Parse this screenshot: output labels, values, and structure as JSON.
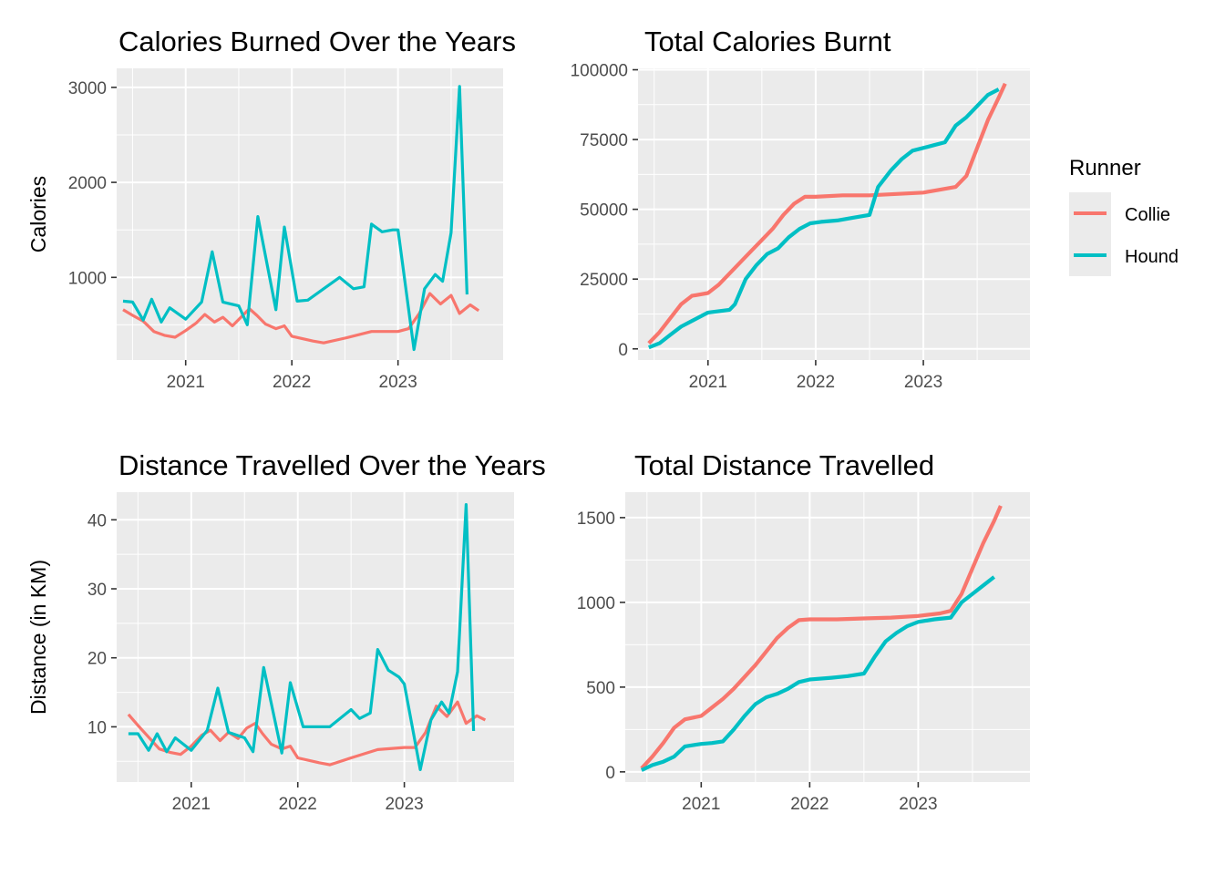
{
  "legend": {
    "title": "Runner",
    "placement": "right",
    "entries": [
      {
        "label": "Collie",
        "color": "#F8766D"
      },
      {
        "label": "Hound",
        "color": "#00BFC4"
      }
    ]
  },
  "chart_data": [
    {
      "type": "line",
      "title": "Calories Burned Over the Years",
      "xlabel": "",
      "ylabel": "Calories",
      "xlim": [
        2020.35,
        2023.99
      ],
      "ylim": [
        130,
        3200
      ],
      "xticks": [
        2021,
        2022,
        2023
      ],
      "yticks": [
        1000,
        2000,
        3000
      ],
      "grid": true,
      "series": [
        {
          "name": "Collie",
          "color": "#F8766D",
          "x": [
            2020.41,
            2020.5,
            2020.6,
            2020.7,
            2020.8,
            2020.9,
            2021.0,
            2021.1,
            2021.18,
            2021.27,
            2021.35,
            2021.44,
            2021.52,
            2021.6,
            2021.67,
            2021.75,
            2021.85,
            2021.93,
            2022.0,
            2022.2,
            2022.3,
            2022.5,
            2022.75,
            2023.0,
            2023.1,
            2023.2,
            2023.3,
            2023.4,
            2023.5,
            2023.58,
            2023.68,
            2023.76
          ],
          "values": [
            660,
            600,
            540,
            430,
            390,
            370,
            440,
            520,
            610,
            530,
            580,
            490,
            580,
            670,
            600,
            510,
            460,
            490,
            380,
            330,
            310,
            360,
            430,
            430,
            460,
            620,
            830,
            720,
            810,
            620,
            710,
            650
          ]
        },
        {
          "name": "Hound",
          "color": "#00BFC4",
          "x": [
            2020.41,
            2020.5,
            2020.6,
            2020.68,
            2020.77,
            2020.85,
            2021.0,
            2021.15,
            2021.25,
            2021.35,
            2021.5,
            2021.58,
            2021.68,
            2021.85,
            2021.93,
            2022.05,
            2022.15,
            2022.3,
            2022.45,
            2022.58,
            2022.68,
            2022.75,
            2022.85,
            2022.95,
            2023.0,
            2023.15,
            2023.25,
            2023.35,
            2023.42,
            2023.5,
            2023.58,
            2023.65
          ],
          "values": [
            750,
            740,
            550,
            770,
            530,
            680,
            560,
            740,
            1270,
            740,
            700,
            500,
            1640,
            660,
            1530,
            750,
            760,
            880,
            1000,
            880,
            900,
            1560,
            1480,
            1500,
            1500,
            240,
            880,
            1030,
            960,
            1470,
            3010,
            820
          ]
        }
      ]
    },
    {
      "type": "line",
      "title": "Total Calories Burnt",
      "xlabel": "",
      "ylabel": "",
      "xlim": [
        2020.35,
        2023.99
      ],
      "ylim": [
        -4000,
        100500
      ],
      "xticks": [
        2021,
        2022,
        2023
      ],
      "yticks": [
        0,
        25000,
        50000,
        75000,
        100000
      ],
      "grid": true,
      "series": [
        {
          "name": "Collie",
          "color": "#F8766D",
          "x": [
            2020.45,
            2020.55,
            2020.65,
            2020.75,
            2020.85,
            2021.0,
            2021.1,
            2021.2,
            2021.3,
            2021.4,
            2021.5,
            2021.6,
            2021.7,
            2021.8,
            2021.9,
            2022.0,
            2022.25,
            2022.5,
            2022.75,
            2023.0,
            2023.15,
            2023.3,
            2023.4,
            2023.5,
            2023.6,
            2023.7,
            2023.76
          ],
          "values": [
            2000,
            6000,
            11000,
            16000,
            19000,
            20000,
            23000,
            27000,
            31000,
            35000,
            39000,
            43000,
            48000,
            52000,
            54500,
            54500,
            55000,
            55000,
            55500,
            56000,
            57000,
            58000,
            62000,
            72000,
            82000,
            90000,
            95000
          ]
        },
        {
          "name": "Hound",
          "color": "#00BFC4",
          "x": [
            2020.45,
            2020.55,
            2020.65,
            2020.75,
            2020.85,
            2021.0,
            2021.1,
            2021.2,
            2021.25,
            2021.35,
            2021.45,
            2021.55,
            2021.65,
            2021.75,
            2021.85,
            2021.95,
            2022.05,
            2022.2,
            2022.35,
            2022.5,
            2022.58,
            2022.7,
            2022.8,
            2022.9,
            2023.0,
            2023.1,
            2023.2,
            2023.3,
            2023.4,
            2023.5,
            2023.6,
            2023.7
          ],
          "values": [
            500,
            2000,
            5000,
            8000,
            10000,
            13000,
            13500,
            14000,
            16000,
            25000,
            30000,
            34000,
            36000,
            40000,
            43000,
            45000,
            45500,
            46000,
            47000,
            48000,
            58000,
            64000,
            68000,
            71000,
            72000,
            73000,
            74000,
            80000,
            83000,
            87000,
            91000,
            93000
          ]
        }
      ]
    },
    {
      "type": "line",
      "title": "Distance Travelled Over the Years",
      "xlabel": "",
      "ylabel": "Distance (in KM)",
      "xlim": [
        2020.3,
        2024.03
      ],
      "ylim": [
        2,
        44
      ],
      "xticks": [
        2021,
        2022,
        2023
      ],
      "yticks": [
        10,
        20,
        30,
        40
      ],
      "grid": true,
      "series": [
        {
          "name": "Collie",
          "color": "#F8766D",
          "x": [
            2020.41,
            2020.5,
            2020.6,
            2020.7,
            2020.8,
            2020.9,
            2021.0,
            2021.1,
            2021.18,
            2021.27,
            2021.35,
            2021.44,
            2021.52,
            2021.6,
            2021.67,
            2021.75,
            2021.85,
            2021.93,
            2022.0,
            2022.2,
            2022.3,
            2022.5,
            2022.75,
            2023.0,
            2023.1,
            2023.2,
            2023.3,
            2023.4,
            2023.5,
            2023.58,
            2023.68,
            2023.76
          ],
          "values": [
            11.8,
            10.2,
            8.5,
            6.8,
            6.3,
            6.0,
            7.2,
            8.8,
            9.5,
            8.0,
            9.2,
            8.3,
            9.8,
            10.5,
            9.0,
            7.5,
            6.8,
            7.2,
            5.5,
            4.8,
            4.5,
            5.5,
            6.7,
            7.0,
            7.0,
            9.2,
            13.0,
            11.5,
            13.6,
            10.5,
            11.6,
            11.0
          ]
        },
        {
          "name": "Hound",
          "color": "#00BFC4",
          "x": [
            2020.41,
            2020.5,
            2020.6,
            2020.68,
            2020.77,
            2020.85,
            2021.0,
            2021.15,
            2021.25,
            2021.35,
            2021.5,
            2021.58,
            2021.68,
            2021.85,
            2021.93,
            2022.05,
            2022.15,
            2022.3,
            2022.5,
            2022.58,
            2022.68,
            2022.75,
            2022.85,
            2022.95,
            2023.0,
            2023.15,
            2023.25,
            2023.35,
            2023.42,
            2023.5,
            2023.58,
            2023.65
          ],
          "values": [
            9.0,
            9.0,
            6.6,
            9.0,
            6.4,
            8.4,
            6.6,
            9.5,
            15.6,
            9.2,
            8.4,
            6.4,
            18.6,
            6.2,
            16.4,
            10.0,
            10.0,
            10.0,
            12.5,
            11.2,
            12.0,
            21.2,
            18.2,
            17.2,
            16.2,
            3.8,
            11.0,
            13.6,
            12.0,
            18.0,
            42.2,
            9.4
          ]
        }
      ]
    },
    {
      "type": "line",
      "title": "Total Distance Travelled",
      "xlabel": "",
      "ylabel": "",
      "xlim": [
        2020.3,
        2024.03
      ],
      "ylim": [
        -60,
        1650
      ],
      "xticks": [
        2021,
        2022,
        2023
      ],
      "yticks": [
        0,
        500,
        1000,
        1500
      ],
      "grid": true,
      "series": [
        {
          "name": "Collie",
          "color": "#F8766D",
          "x": [
            2020.45,
            2020.55,
            2020.65,
            2020.75,
            2020.85,
            2021.0,
            2021.1,
            2021.2,
            2021.3,
            2021.4,
            2021.5,
            2021.6,
            2021.7,
            2021.8,
            2021.9,
            2022.0,
            2022.25,
            2022.5,
            2022.75,
            2023.0,
            2023.2,
            2023.3,
            2023.4,
            2023.5,
            2023.6,
            2023.7,
            2023.76
          ],
          "values": [
            20,
            90,
            170,
            260,
            310,
            330,
            380,
            430,
            490,
            560,
            630,
            710,
            790,
            850,
            895,
            900,
            900,
            905,
            910,
            920,
            935,
            950,
            1050,
            1200,
            1350,
            1480,
            1570
          ]
        },
        {
          "name": "Hound",
          "color": "#00BFC4",
          "x": [
            2020.45,
            2020.55,
            2020.65,
            2020.75,
            2020.85,
            2021.0,
            2021.1,
            2021.2,
            2021.3,
            2021.4,
            2021.5,
            2021.6,
            2021.7,
            2021.8,
            2021.9,
            2022.0,
            2022.2,
            2022.35,
            2022.5,
            2022.6,
            2022.7,
            2022.8,
            2022.9,
            2023.0,
            2023.15,
            2023.3,
            2023.4,
            2023.5,
            2023.6,
            2023.7
          ],
          "values": [
            10,
            40,
            60,
            90,
            150,
            165,
            170,
            180,
            250,
            330,
            400,
            440,
            460,
            490,
            530,
            545,
            555,
            565,
            580,
            680,
            770,
            820,
            860,
            885,
            900,
            910,
            1000,
            1050,
            1100,
            1150
          ]
        }
      ]
    }
  ]
}
